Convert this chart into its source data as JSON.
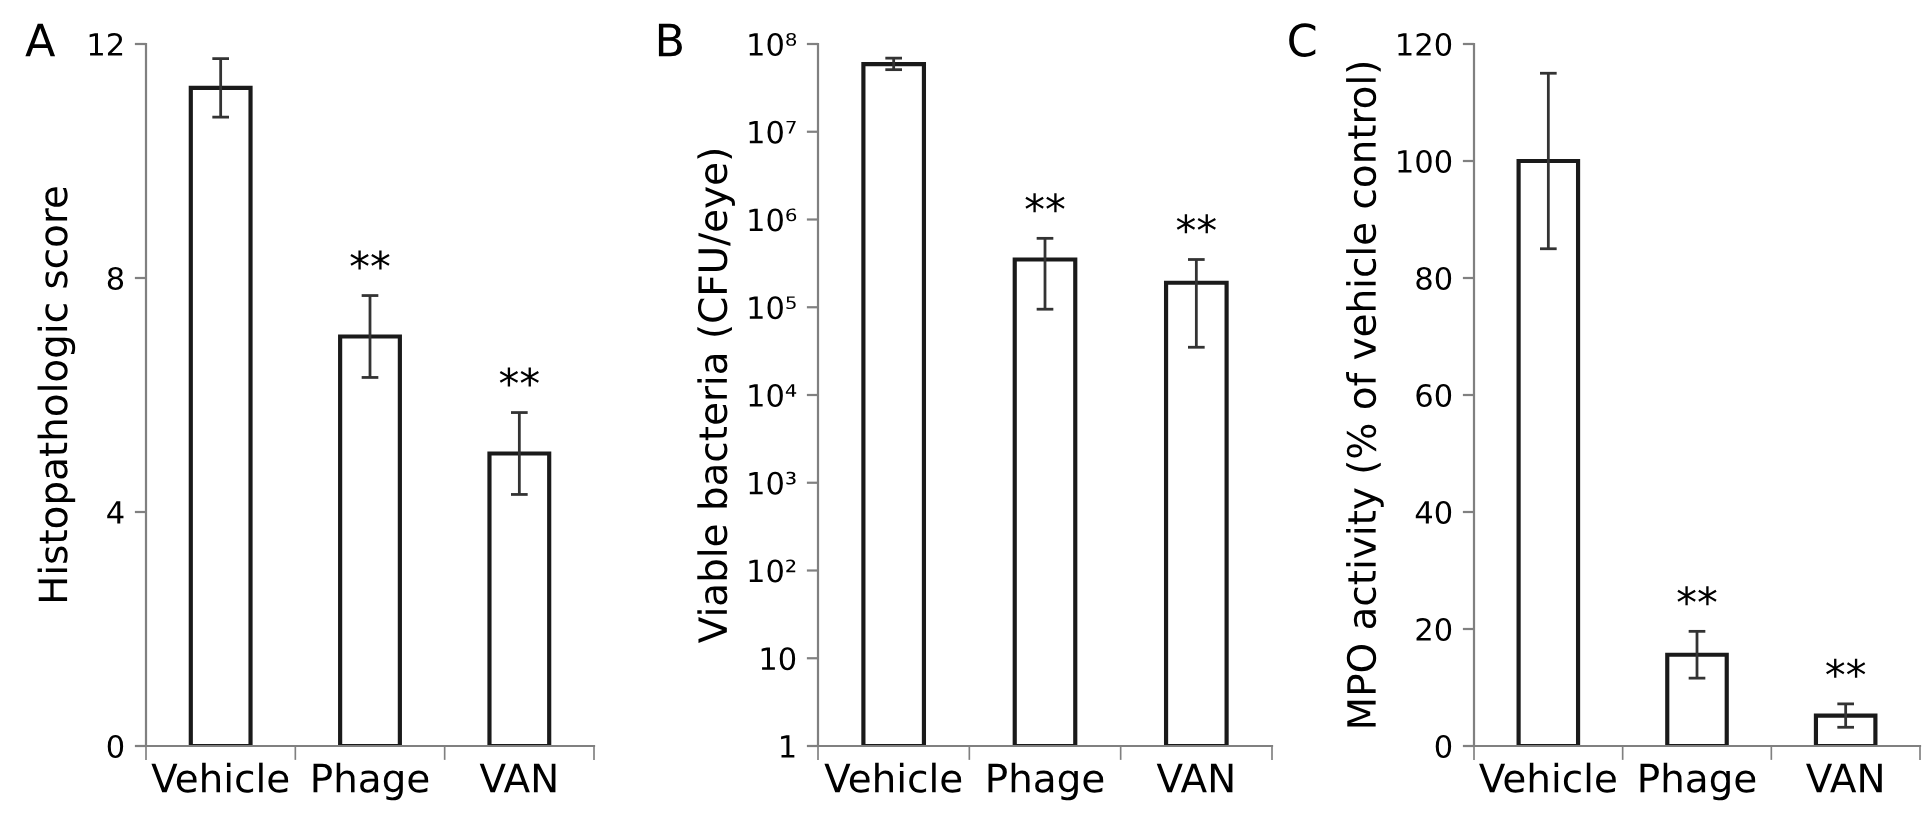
{
  "chart_data": [
    {
      "type": "bar",
      "title": "A",
      "ylabel": "Histopathologic score",
      "categories": [
        "Vehicle",
        "Phage",
        "VAN"
      ],
      "values": [
        11.25,
        7.0,
        5.0
      ],
      "errors": [
        0.5,
        0.7,
        0.7
      ],
      "color": "#ffffff",
      "ylim": [
        0,
        12
      ],
      "yticks": [
        0,
        4,
        8,
        12
      ],
      "grid": false,
      "legend": false,
      "annotations": [
        {
          "text": "**",
          "x": "Phage",
          "y": 7.7
        },
        {
          "text": "**",
          "x": "VAN",
          "y": 5.7
        }
      ]
    },
    {
      "type": "bar",
      "title": "B",
      "ylabel": "Viable bacteria (CFU/eye)",
      "categories": [
        "Vehicle",
        "Phage",
        "VAN"
      ],
      "values": [
        59000000,
        350000,
        190000
      ],
      "errors": [
        [
          51000000,
          69000000
        ],
        [
          95000,
          610000
        ],
        [
          35000,
          350000
        ]
      ],
      "color": "#ffffff",
      "log": "y",
      "ylim": [
        1,
        100000000
      ],
      "yticks": [
        1,
        10,
        {
          "value": 100,
          "label": "10²"
        },
        {
          "value": 1000,
          "label": "10³"
        },
        {
          "value": 10000,
          "label": "10⁴"
        },
        {
          "value": 100000,
          "label": "10⁵"
        },
        {
          "value": 1000000,
          "label": "10⁶"
        },
        {
          "value": 10000000,
          "label": "10⁷"
        },
        {
          "value": 100000000,
          "label": "10⁸"
        }
      ],
      "grid": false,
      "legend": false,
      "annotations": [
        {
          "text": "**",
          "x": "Phage",
          "y": 610000
        },
        {
          "text": "**",
          "x": "VAN",
          "y": 350000
        }
      ]
    },
    {
      "type": "bar",
      "title": "C",
      "ylabel": "MPO activity (% of vehicle control)",
      "categories": [
        "Vehicle",
        "Phage",
        "VAN"
      ],
      "values": [
        100,
        15.6,
        5.2
      ],
      "errors": [
        15,
        4,
        2
      ],
      "color": "#ffffff",
      "ylim": [
        0,
        120
      ],
      "yticks": [
        0,
        20,
        40,
        60,
        80,
        100,
        120
      ],
      "grid": false,
      "legend": false,
      "annotations": [
        {
          "text": "**",
          "x": "Phage",
          "y": 19.6
        },
        {
          "text": "**",
          "x": "VAN",
          "y": 7.2
        }
      ]
    }
  ]
}
